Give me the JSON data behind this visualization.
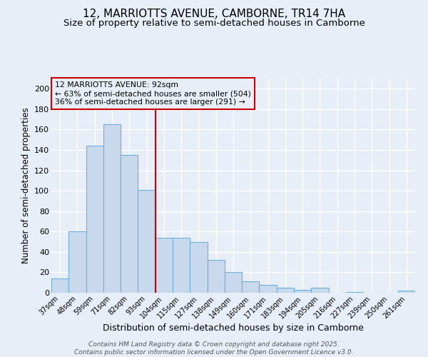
{
  "title1": "12, MARRIOTTS AVENUE, CAMBORNE, TR14 7HA",
  "title2": "Size of property relative to semi-detached houses in Camborne",
  "categories": [
    "37sqm",
    "48sqm",
    "59sqm",
    "71sqm",
    "82sqm",
    "93sqm",
    "104sqm",
    "115sqm",
    "127sqm",
    "138sqm",
    "149sqm",
    "160sqm",
    "171sqm",
    "183sqm",
    "194sqm",
    "205sqm",
    "216sqm",
    "227sqm",
    "239sqm",
    "250sqm",
    "261sqm"
  ],
  "values": [
    14,
    60,
    144,
    165,
    135,
    101,
    54,
    54,
    50,
    32,
    20,
    11,
    8,
    5,
    3,
    5,
    0,
    1,
    0,
    0,
    2
  ],
  "bar_color": "#c8d9ee",
  "bar_edgecolor": "#6baed6",
  "vline_index": 5,
  "vline_color": "#cc0000",
  "annotation_title": "12 MARRIOTTS AVENUE: 92sqm",
  "annotation_line1": "← 63% of semi-detached houses are smaller (504)",
  "annotation_line2": "36% of semi-detached houses are larger (291) →",
  "annotation_box_edgecolor": "#cc0000",
  "xlabel": "Distribution of semi-detached houses by size in Camborne",
  "ylabel": "Number of semi-detached properties",
  "ylim": [
    0,
    210
  ],
  "yticks": [
    0,
    20,
    40,
    60,
    80,
    100,
    120,
    140,
    160,
    180,
    200
  ],
  "footer1": "Contains HM Land Registry data © Crown copyright and database right 2025.",
  "footer2": "Contains public sector information licensed under the Open Government Licence v3.0.",
  "bg_color": "#e8eef7",
  "grid_color": "#ffffff",
  "title_fontsize": 11,
  "subtitle_fontsize": 9.5
}
